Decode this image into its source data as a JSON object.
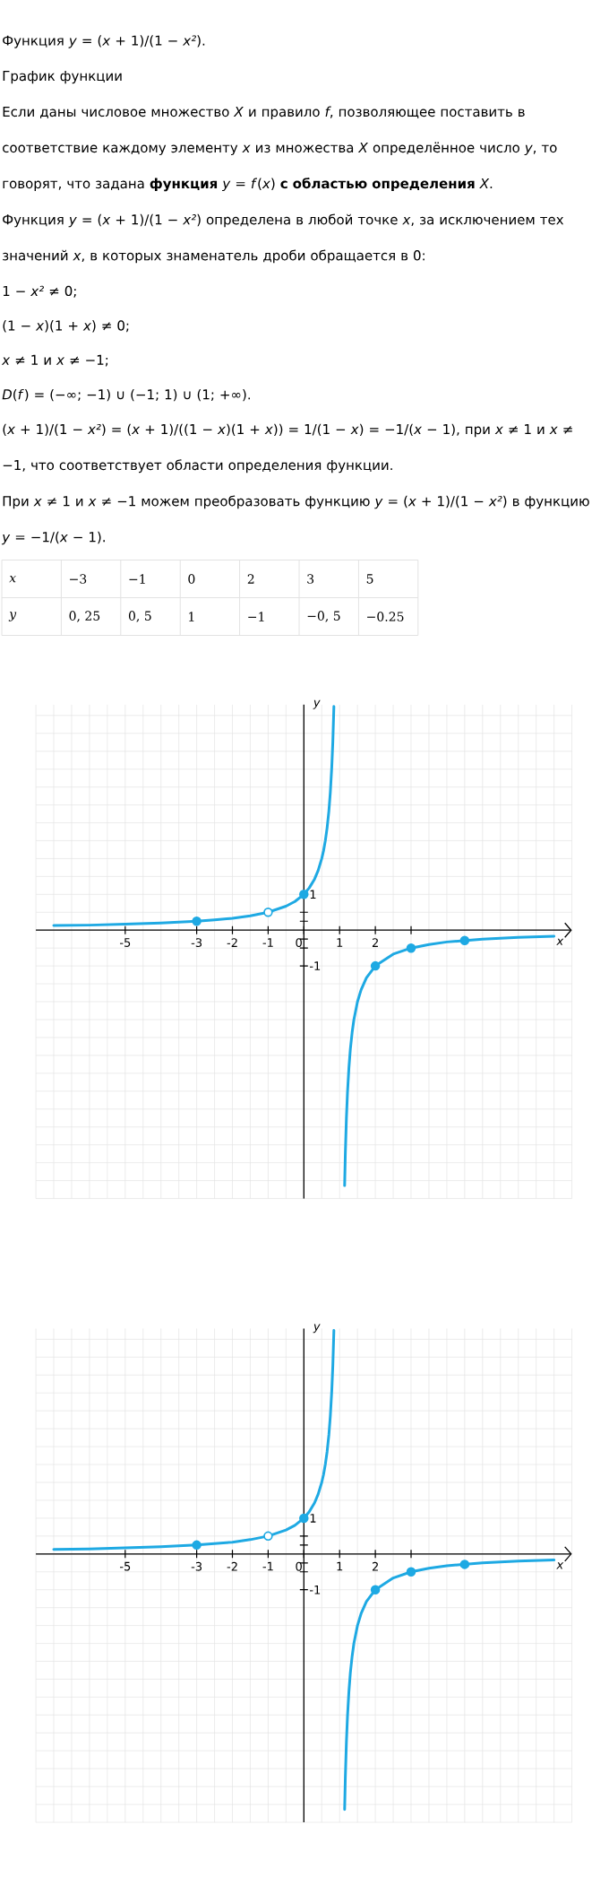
{
  "chart_data": [
    {
      "type": "other",
      "annotations": [
        "Функция *y* = (*x* + 1)/(1 − *x²*).",
        "График функции",
        "Если даны числовое множество *X* и правило *f*, позволяющее поставить в соответствие каждому элементу *x* из множества *X* определённое число *y*, то говорят, что задана **функция** *y* = *f*(*x*) **с областью определения** *X*.",
        "Функция *y* = (*x* + 1)/(1 − *x²*) определена в любой точке *x*, за исключением тех значений *x*, в которых знаменатель дроби обращается в 0:",
        "1 − *x²* ≠ 0;",
        "(1 − *x*)(1 + *x*) ≠ 0;",
        "*x* ≠ 1 и *x* ≠ −1;",
        "*D*(*f*) = (−∞; −1) ∪ (−1; 1) ∪ (1; +∞).",
        "(*x* + 1)/(1 − *x²*) = (*x* + 1)/((1 − *x*)(1 + *x*)) = 1/(1 − *x*) = −1/(*x* − 1), при *x* ≠ 1 и *x* ≠ −1, что соответствует области определения функции.",
        "При *x* ≠ 1 и *x* ≠ −1 можем преобразовать функцию *y* = (*x* + 1)/(1 − *x²*) в функцию *y* = −1/(*x* − 1)."
      ],
      "xlabel": "x",
      "ylabel": "y",
      "categories": [
        "−3",
        "−1",
        "0",
        "2",
        "3",
        "5"
      ],
      "value_labels": [
        "0, 25",
        "0, 5",
        "1",
        "−1",
        "−0, 5",
        "−0.25"
      ]
    },
    {
      "type": "line",
      "xlabel": "x",
      "ylabel": "y",
      "xlim": [
        -7.5,
        7.5
      ],
      "ylim": [
        -7.5,
        6.3
      ],
      "xticks": [
        -5,
        -3,
        -2,
        -1,
        0,
        1,
        2,
        {
          "value": 3,
          "label": null
        }
      ],
      "yticks": [
        -1,
        {
          "value": -0.5,
          "label": null
        },
        {
          "value": -0.25,
          "label": null
        },
        {
          "value": 0.25,
          "label": null
        },
        {
          "value": 0.5,
          "label": null
        },
        1
      ],
      "grid": true,
      "line_style": "solid",
      "series": [
        {
          "color": "#1ea9e3",
          "x": [
            -7,
            -6,
            -5,
            -4,
            -3,
            -2.5,
            -2,
            -1.5,
            -1,
            -0.5,
            -0.25,
            0,
            0.15,
            0.3,
            0.4,
            0.5,
            0.55,
            0.6,
            0.65,
            0.7,
            0.74,
            0.78,
            0.81,
            0.84
          ],
          "values": [
            0.13,
            0.14,
            0.17,
            0.2,
            0.25,
            0.29,
            0.33,
            0.4,
            0.5,
            0.67,
            0.8,
            1,
            1.18,
            1.43,
            1.67,
            2,
            2.22,
            2.5,
            2.86,
            3.33,
            3.85,
            4.55,
            5.26,
            6.25
          ]
        },
        {
          "color": "#1ea9e3",
          "x": [
            1.14,
            1.16,
            1.19,
            1.22,
            1.26,
            1.3,
            1.35,
            1.4,
            1.5,
            1.6,
            1.75,
            2,
            2.5,
            3,
            3.5,
            4,
            5,
            6,
            7
          ],
          "values": [
            -7.14,
            -6.25,
            -5.26,
            -4.55,
            -3.85,
            -3.33,
            -2.86,
            -2.5,
            -2,
            -1.67,
            -1.33,
            -1,
            -0.67,
            -0.5,
            -0.4,
            -0.33,
            -0.25,
            -0.2,
            -0.17
          ]
        },
        {
          "type": "scatter",
          "marker": "circle",
          "color": "#1ea9e3",
          "x": [
            -3,
            0,
            2,
            3,
            4.5
          ],
          "values": [
            0.25,
            1,
            -1,
            -0.5,
            -0.29
          ]
        },
        {
          "type": "scatter",
          "marker": "circle",
          "color": "#1ea9e3",
          "colors": [
            "#ffffff"
          ],
          "x": [
            -1
          ],
          "values": [
            0.5
          ]
        }
      ]
    },
    {
      "type": "line",
      "xlabel": "x",
      "ylabel": "y",
      "xlim": [
        -7.5,
        7.5
      ],
      "ylim": [
        -7.5,
        6.3
      ],
      "xticks": [
        -5,
        -3,
        -2,
        -1,
        0,
        1,
        2,
        {
          "value": 3,
          "label": null
        }
      ],
      "yticks": [
        -1,
        {
          "value": -0.5,
          "label": null
        },
        {
          "value": -0.25,
          "label": null
        },
        {
          "value": 0.25,
          "label": null
        },
        {
          "value": 0.5,
          "label": null
        },
        1
      ],
      "grid": true,
      "line_style": "solid",
      "series": [
        {
          "color": "#1ea9e3",
          "x": [
            -7,
            -6,
            -5,
            -4,
            -3,
            -2.5,
            -2,
            -1.5,
            -1,
            -0.5,
            -0.25,
            0,
            0.15,
            0.3,
            0.4,
            0.5,
            0.55,
            0.6,
            0.65,
            0.7,
            0.74,
            0.78,
            0.81,
            0.84
          ],
          "values": [
            0.13,
            0.14,
            0.17,
            0.2,
            0.25,
            0.29,
            0.33,
            0.4,
            0.5,
            0.67,
            0.8,
            1,
            1.18,
            1.43,
            1.67,
            2,
            2.22,
            2.5,
            2.86,
            3.33,
            3.85,
            4.55,
            5.26,
            6.25
          ]
        },
        {
          "color": "#1ea9e3",
          "x": [
            1.14,
            1.16,
            1.19,
            1.22,
            1.26,
            1.3,
            1.35,
            1.4,
            1.5,
            1.6,
            1.75,
            2,
            2.5,
            3,
            3.5,
            4,
            5,
            6,
            7
          ],
          "values": [
            -7.14,
            -6.25,
            -5.26,
            -4.55,
            -3.85,
            -3.33,
            -2.86,
            -2.5,
            -2,
            -1.67,
            -1.33,
            -1,
            -0.67,
            -0.5,
            -0.4,
            -0.33,
            -0.25,
            -0.2,
            -0.17
          ]
        },
        {
          "type": "scatter",
          "marker": "circle",
          "color": "#1ea9e3",
          "x": [
            -3,
            0,
            2,
            3,
            4.5
          ],
          "values": [
            0.25,
            1,
            -1,
            -0.5,
            -0.29
          ]
        },
        {
          "type": "scatter",
          "marker": "circle",
          "color": "#1ea9e3",
          "colors": [
            "#ffffff"
          ],
          "x": [
            -1
          ],
          "values": [
            0.5
          ]
        }
      ]
    }
  ]
}
